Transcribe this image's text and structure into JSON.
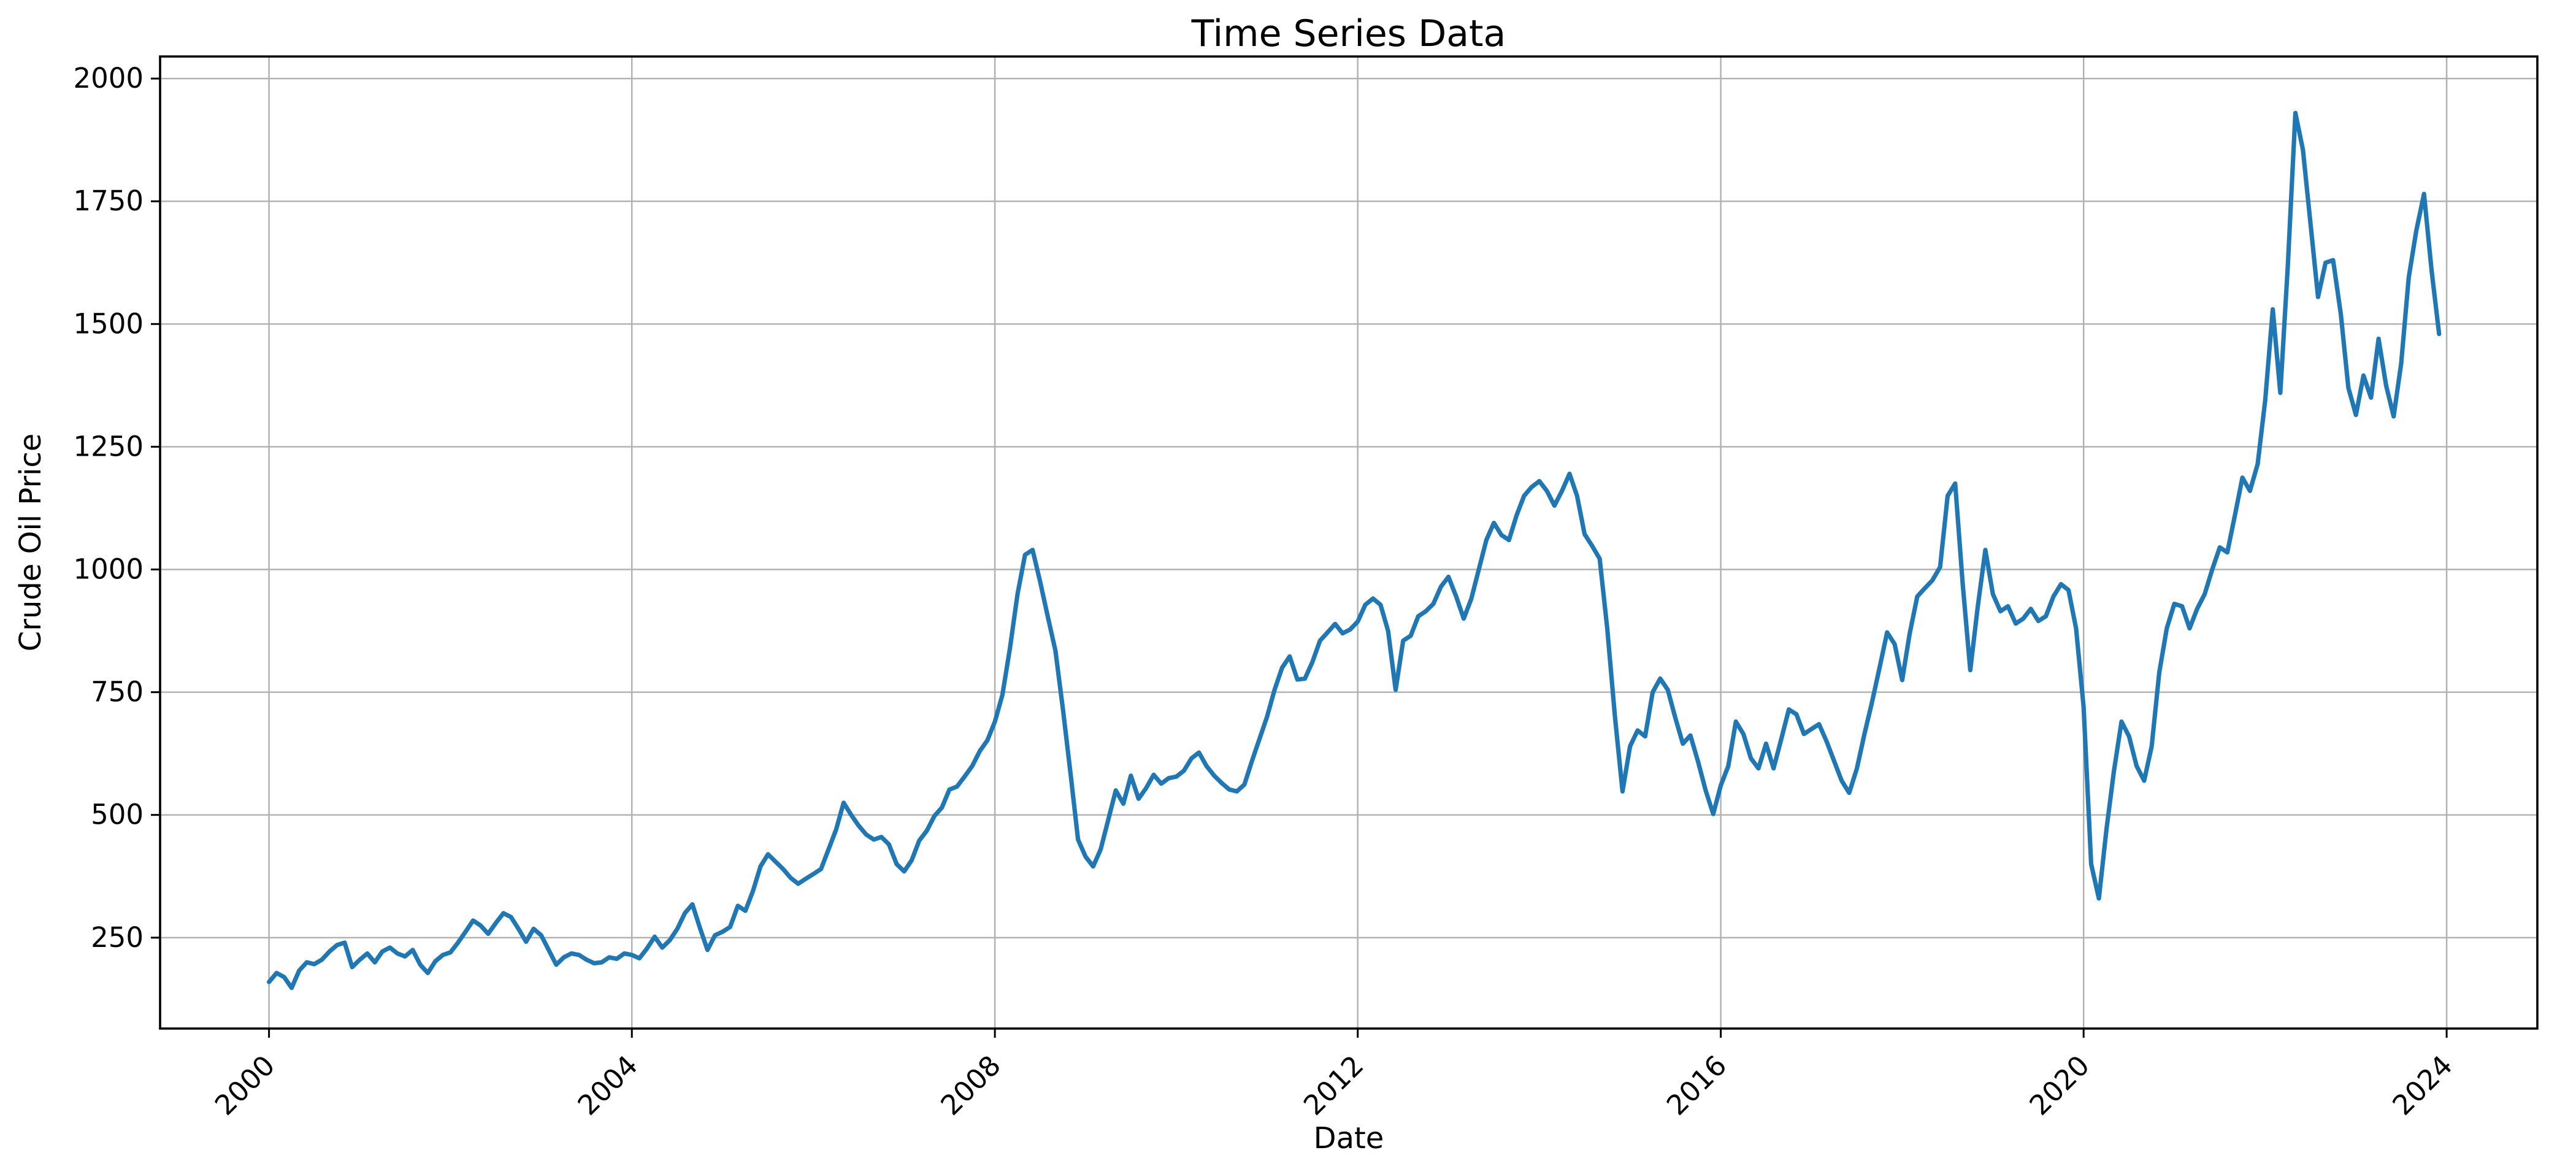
{
  "chart_data": {
    "type": "line",
    "title": "Time Series Data",
    "xlabel": "Date",
    "ylabel": "Crude Oil Price",
    "x_ticks": [
      2000,
      2004,
      2008,
      2012,
      2016,
      2020,
      2024
    ],
    "x_tick_labels": [
      "2000",
      "2004",
      "2008",
      "2012",
      "2016",
      "2020",
      "2024"
    ],
    "y_ticks": [
      250,
      500,
      750,
      1000,
      1250,
      1500,
      1750,
      2000
    ],
    "y_tick_labels": [
      "250",
      "500",
      "750",
      "1000",
      "1250",
      "1500",
      "1750",
      "2000"
    ],
    "xlim": [
      1998.8,
      2025.0
    ],
    "ylim": [
      65,
      2045
    ],
    "grid": true,
    "legend_position": "none",
    "x_tick_rotation_deg": 45,
    "colors": {
      "line": "#1f77b4",
      "grid": "#b0b0b0",
      "spine": "#000000",
      "text": "#000000",
      "background": "#ffffff"
    },
    "series": [
      {
        "name": "Crude Oil Price",
        "start_year": 2000,
        "frequency": "monthly",
        "points_per_year": 12,
        "values": [
          160,
          178,
          170,
          148,
          183,
          200,
          196,
          205,
          222,
          235,
          240,
          190,
          205,
          218,
          200,
          222,
          230,
          218,
          212,
          225,
          195,
          178,
          202,
          215,
          220,
          240,
          262,
          285,
          275,
          258,
          280,
          300,
          292,
          268,
          242,
          268,
          255,
          225,
          195,
          210,
          218,
          215,
          205,
          198,
          200,
          210,
          207,
          218,
          215,
          208,
          228,
          252,
          230,
          245,
          268,
          300,
          318,
          270,
          225,
          255,
          262,
          272,
          315,
          305,
          345,
          395,
          420,
          405,
          390,
          372,
          360,
          370,
          380,
          390,
          430,
          470,
          525,
          500,
          478,
          460,
          450,
          455,
          440,
          400,
          385,
          408,
          448,
          468,
          498,
          515,
          552,
          558,
          578,
          600,
          630,
          652,
          690,
          745,
          840,
          950,
          1030,
          1040,
          975,
          905,
          835,
          715,
          585,
          450,
          415,
          395,
          430,
          490,
          550,
          523,
          580,
          533,
          555,
          582,
          564,
          575,
          578,
          590,
          615,
          627,
          600,
          580,
          565,
          552,
          548,
          562,
          610,
          655,
          700,
          755,
          800,
          823,
          776,
          778,
          812,
          855,
          872,
          889,
          870,
          878,
          894,
          928,
          941,
          928,
          875,
          755,
          855,
          865,
          905,
          915,
          930,
          965,
          985,
          945,
          900,
          940,
          1000,
          1060,
          1095,
          1070,
          1060,
          1110,
          1150,
          1168,
          1180,
          1160,
          1130,
          1160,
          1195,
          1150,
          1072,
          1048,
          1022,
          880,
          700,
          548,
          640,
          672,
          660,
          750,
          778,
          755,
          698,
          645,
          662,
          608,
          550,
          502,
          560,
          600,
          690,
          665,
          615,
          595,
          645,
          595,
          655,
          715,
          705,
          665,
          675,
          685,
          650,
          610,
          570,
          545,
          595,
          665,
          730,
          800,
          872,
          848,
          775,
          870,
          945,
          962,
          978,
          1005,
          1150,
          1175,
          970,
          795,
          925,
          1040,
          950,
          915,
          925,
          890,
          900,
          920,
          895,
          905,
          945,
          970,
          958,
          880,
          720,
          400,
          330,
          470,
          590,
          690,
          660,
          600,
          570,
          640,
          790,
          880,
          930,
          925,
          880,
          920,
          950,
          1000,
          1045,
          1035,
          1110,
          1187,
          1160,
          1215,
          1345,
          1530,
          1360,
          1620,
          1930,
          1855,
          1705,
          1555,
          1625,
          1630,
          1520,
          1370,
          1315,
          1395,
          1350,
          1470,
          1375,
          1312,
          1420,
          1595,
          1690,
          1765,
          1610,
          1480
        ]
      }
    ]
  }
}
